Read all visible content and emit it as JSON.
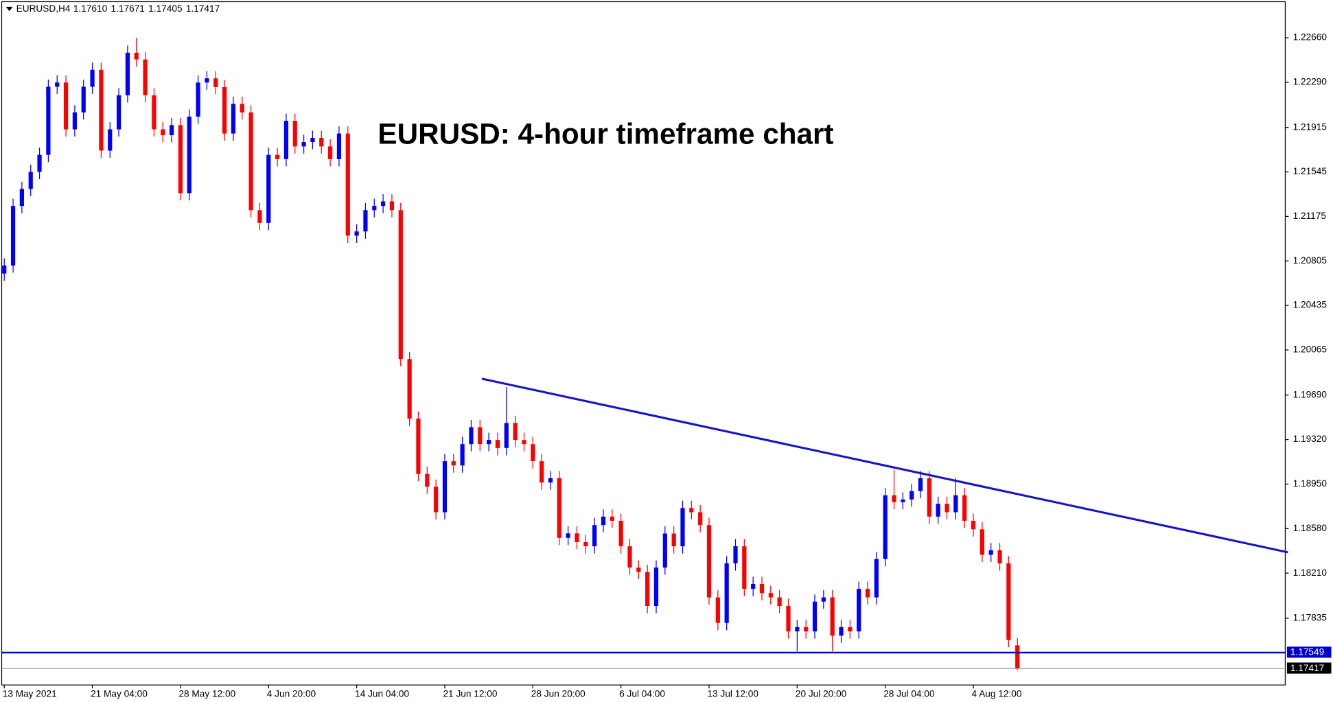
{
  "chart_data": {
    "type": "candlestick",
    "symbol": "EURUSD,H4",
    "header_values": [
      "1.17610",
      "1.17671",
      "1.17405",
      "1.17417"
    ],
    "title": "EURUSD: 4-hour timeframe chart",
    "up_color": "#0000ff",
    "down_color": "#ff0000",
    "categories": [
      "13 May 2021",
      null,
      null,
      null,
      null,
      null,
      null,
      null,
      null,
      null,
      "21 May 04:00",
      null,
      null,
      null,
      null,
      null,
      null,
      null,
      null,
      null,
      "28 May 12:00",
      null,
      null,
      null,
      null,
      null,
      null,
      null,
      null,
      null,
      "4 Jun 20:00",
      null,
      null,
      null,
      null,
      null,
      null,
      null,
      null,
      null,
      "14 Jun 04:00",
      null,
      null,
      null,
      null,
      null,
      null,
      null,
      null,
      null,
      "21 Jun 12:00",
      null,
      null,
      null,
      null,
      null,
      null,
      null,
      null,
      null,
      "28 Jun 20:00",
      null,
      null,
      null,
      null,
      null,
      null,
      null,
      null,
      null,
      "6 Jul 04:00",
      null,
      null,
      null,
      null,
      null,
      null,
      null,
      null,
      null,
      "13 Jul 12:00",
      null,
      null,
      null,
      null,
      null,
      null,
      null,
      null,
      null,
      "20 Jul 20:00",
      null,
      null,
      null,
      null,
      null,
      null,
      null,
      null,
      null,
      "28 Jul 04:00",
      null,
      null,
      null,
      null,
      null,
      null,
      null,
      null,
      null,
      "4 Aug 12:00",
      null,
      null,
      null,
      null,
      null
    ],
    "open": [
      1.207,
      1.20767,
      1.21262,
      1.21404,
      1.21545,
      1.21687,
      1.22253,
      1.22288,
      1.21899,
      1.2204,
      1.22253,
      1.22394,
      1.21722,
      1.21899,
      1.22182,
      1.22536,
      1.2248,
      1.22182,
      1.21899,
      1.2185,
      1.21934,
      1.21368,
      1.22005,
      1.22288,
      1.22323,
      1.2225,
      1.21864,
      1.22111,
      1.2204,
      1.21227,
      1.21121,
      1.21687,
      1.21651,
      1.2197,
      1.21757,
      1.21793,
      1.21828,
      1.21757,
      1.21651,
      1.21864,
      1.21015,
      1.2105,
      1.21227,
      1.21262,
      1.213,
      1.21227,
      1.19989,
      1.19494,
      1.19034,
      1.18928,
      1.18716,
      1.1914,
      1.19105,
      1.19282,
      1.19423,
      1.19282,
      1.19317,
      1.1925,
      1.19458,
      1.19317,
      1.19282,
      1.1914,
      1.18963,
      1.18999,
      1.18503,
      1.1854,
      1.18468,
      1.18433,
      1.18609,
      1.1868,
      1.18645,
      1.18433,
      1.18256,
      1.1822,
      1.17937,
      1.18256,
      1.18539,
      1.18433,
      1.18751,
      1.18716,
      1.18609,
      1.18008,
      1.17796,
      1.18291,
      1.18433,
      1.18079,
      1.1812,
      1.18044,
      1.18008,
      1.17937,
      1.17725,
      1.17761,
      1.17725,
      1.17973,
      1.18008,
      1.1769,
      1.17761,
      1.17725,
      1.18079,
      1.18008,
      1.18327,
      1.18857,
      1.188,
      1.18822,
      1.18892,
      1.18999,
      1.1868,
      1.18786,
      1.18716,
      1.18857,
      1.18645,
      1.18574,
      1.18362,
      1.184,
      1.18291,
      1.1761
    ],
    "high": [
      1.20827,
      1.21322,
      1.21464,
      1.21605,
      1.21747,
      1.22313,
      1.22348,
      1.22348,
      1.221,
      1.22313,
      1.22454,
      1.22454,
      1.21959,
      1.22242,
      1.22596,
      1.2266,
      1.2254,
      1.22242,
      1.21959,
      1.21994,
      1.21994,
      1.22065,
      1.22348,
      1.22383,
      1.22383,
      1.2231,
      1.22171,
      1.22171,
      1.221,
      1.21287,
      1.21747,
      1.21747,
      1.2203,
      1.2203,
      1.21853,
      1.21888,
      1.21888,
      1.21817,
      1.21924,
      1.21924,
      1.2111,
      1.21287,
      1.21322,
      1.2136,
      1.2136,
      1.21287,
      1.20049,
      1.19554,
      1.19094,
      1.18988,
      1.192,
      1.192,
      1.19342,
      1.19483,
      1.19483,
      1.19377,
      1.19377,
      1.19756,
      1.19518,
      1.19377,
      1.19342,
      1.192,
      1.19059,
      1.19059,
      1.186,
      1.186,
      1.18528,
      1.18669,
      1.1874,
      1.1874,
      1.18705,
      1.18493,
      1.18316,
      1.1828,
      1.18316,
      1.18599,
      1.18599,
      1.18811,
      1.18811,
      1.18776,
      1.18669,
      1.18068,
      1.18351,
      1.18493,
      1.18493,
      1.1818,
      1.1818,
      1.18104,
      1.18068,
      1.17997,
      1.17821,
      1.17821,
      1.18033,
      1.18068,
      1.18068,
      1.17821,
      1.17821,
      1.18139,
      1.18139,
      1.18387,
      1.18917,
      1.1907,
      1.18882,
      1.18952,
      1.19059,
      1.19059,
      1.18846,
      1.18846,
      1.19,
      1.18917,
      1.18705,
      1.18634,
      1.1846,
      1.1846,
      1.18351,
      1.17671
    ],
    "low": [
      1.2064,
      1.20707,
      1.21202,
      1.21344,
      1.21485,
      1.21627,
      1.22193,
      1.21839,
      1.21839,
      1.2198,
      1.22193,
      1.21662,
      1.21662,
      1.21839,
      1.22122,
      1.2242,
      1.22122,
      1.21839,
      1.2179,
      1.2179,
      1.21308,
      1.21308,
      1.21945,
      1.22228,
      1.2219,
      1.21804,
      1.21804,
      1.2198,
      1.21167,
      1.21061,
      1.21061,
      1.21591,
      1.21591,
      1.21697,
      1.21697,
      1.21733,
      1.21697,
      1.21591,
      1.21591,
      1.20955,
      1.20955,
      1.2099,
      1.21167,
      1.21202,
      1.21167,
      1.19929,
      1.19434,
      1.18974,
      1.18868,
      1.18656,
      1.18656,
      1.19045,
      1.19045,
      1.19222,
      1.19222,
      1.19222,
      1.1919,
      1.1919,
      1.19257,
      1.19222,
      1.1908,
      1.18903,
      1.18903,
      1.18443,
      1.18443,
      1.18408,
      1.18373,
      1.18373,
      1.18549,
      1.18585,
      1.18373,
      1.18196,
      1.1816,
      1.17877,
      1.17877,
      1.18196,
      1.18373,
      1.18373,
      1.18656,
      1.18549,
      1.17948,
      1.17736,
      1.17736,
      1.18231,
      1.18019,
      1.18019,
      1.17984,
      1.17948,
      1.17877,
      1.17665,
      1.1756,
      1.17665,
      1.17665,
      1.17913,
      1.1756,
      1.1763,
      1.17665,
      1.17665,
      1.17948,
      1.17948,
      1.18267,
      1.1874,
      1.1874,
      1.18762,
      1.18832,
      1.1862,
      1.1862,
      1.18656,
      1.18656,
      1.18585,
      1.18514,
      1.18302,
      1.18302,
      1.18231,
      1.17594,
      1.17405
    ],
    "close": [
      1.20767,
      1.21262,
      1.21404,
      1.21545,
      1.21687,
      1.22253,
      1.22288,
      1.21899,
      1.2204,
      1.22253,
      1.22394,
      1.21722,
      1.21899,
      1.22182,
      1.22536,
      1.2248,
      1.22182,
      1.21899,
      1.2185,
      1.21934,
      1.21368,
      1.22005,
      1.22288,
      1.22323,
      1.2225,
      1.21864,
      1.22111,
      1.2204,
      1.21227,
      1.21121,
      1.21687,
      1.21651,
      1.2197,
      1.21757,
      1.21793,
      1.21828,
      1.21757,
      1.21651,
      1.21864,
      1.21015,
      1.2105,
      1.21227,
      1.21262,
      1.213,
      1.21227,
      1.19989,
      1.19494,
      1.19034,
      1.18928,
      1.18716,
      1.1914,
      1.19105,
      1.19282,
      1.19423,
      1.19282,
      1.19317,
      1.1925,
      1.19458,
      1.19317,
      1.19282,
      1.1914,
      1.18963,
      1.18999,
      1.18503,
      1.1854,
      1.18468,
      1.18433,
      1.18609,
      1.1868,
      1.18645,
      1.18433,
      1.18256,
      1.1822,
      1.17937,
      1.18256,
      1.18539,
      1.18433,
      1.18751,
      1.18716,
      1.18609,
      1.18008,
      1.17796,
      1.18291,
      1.18433,
      1.18079,
      1.1812,
      1.18044,
      1.18008,
      1.17937,
      1.17725,
      1.17761,
      1.17725,
      1.17973,
      1.18008,
      1.1769,
      1.17761,
      1.17725,
      1.18079,
      1.18008,
      1.18327,
      1.18857,
      1.188,
      1.18822,
      1.18892,
      1.18999,
      1.1868,
      1.18786,
      1.18716,
      1.18857,
      1.18645,
      1.18574,
      1.18362,
      1.184,
      1.18291,
      1.17654,
      1.17417
    ],
    "ylim": [
      1.1728,
      1.2296
    ],
    "yticks": [
      {
        "value": 1.2266,
        "label": "1.22660"
      },
      {
        "value": 1.2229,
        "label": "1.22290"
      },
      {
        "value": 1.21915,
        "label": "1.21915"
      },
      {
        "value": 1.21545,
        "label": "1.21545"
      },
      {
        "value": 1.21175,
        "label": "1.21175"
      },
      {
        "value": 1.20805,
        "label": "1.20805"
      },
      {
        "value": 1.20435,
        "label": "1.20435"
      },
      {
        "value": 1.20065,
        "label": "1.20065"
      },
      {
        "value": 1.1969,
        "label": "1.19690"
      },
      {
        "value": 1.1932,
        "label": "1.19320"
      },
      {
        "value": 1.1895,
        "label": "1.18950"
      },
      {
        "value": 1.1858,
        "label": "1.18580"
      },
      {
        "value": 1.1821,
        "label": "1.18210"
      },
      {
        "value": 1.17835,
        "label": "1.17835"
      }
    ],
    "support": {
      "value": 1.17549,
      "color": "#0000cc"
    },
    "current": {
      "value": 1.17417,
      "color": "#999999"
    },
    "trendline": {
      "x": [
        54.2,
        145.7
      ],
      "y": [
        1.19826,
        1.18383
      ],
      "color": "#1414c8"
    }
  }
}
